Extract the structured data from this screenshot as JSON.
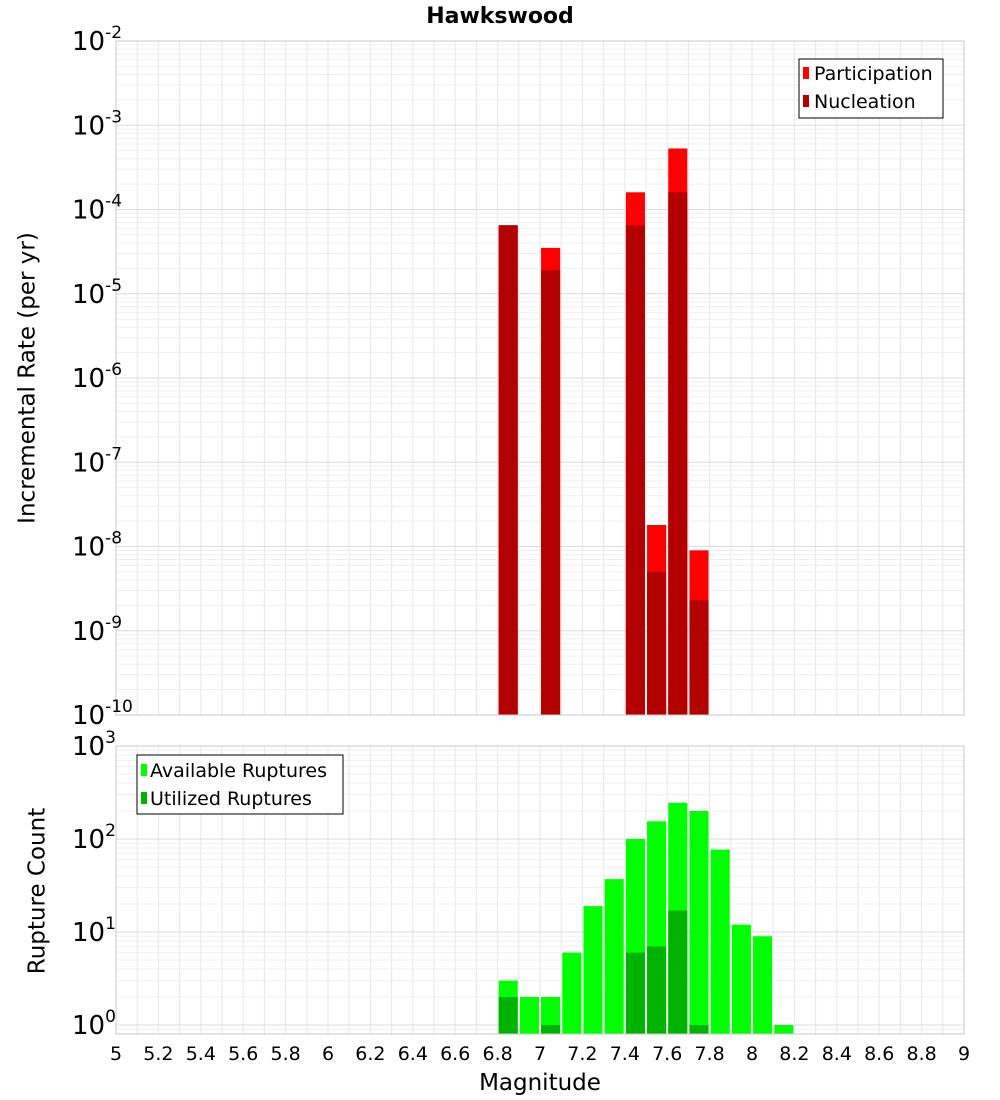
{
  "title": "Hawkswood",
  "colors": {
    "participation": "#ff0000",
    "nucleation": "#b30000",
    "available": "#00ff00",
    "utilized": "#00b300",
    "grid": "#e6e6e6",
    "frame": "#c8c8c8"
  },
  "x_axis": {
    "label": "Magnitude",
    "range": [
      5,
      9
    ],
    "tick_labels": [
      "5",
      "5.2",
      "5.4",
      "5.6",
      "5.8",
      "6",
      "6.2",
      "6.4",
      "6.6",
      "6.8",
      "7",
      "7.2",
      "7.4",
      "7.6",
      "7.8",
      "8",
      "8.2",
      "8.4",
      "8.6",
      "8.8",
      "9"
    ]
  },
  "chart_data": [
    {
      "type": "bar",
      "scale": "log",
      "ylabel": "Incremental Rate (per yr)",
      "ylim": [
        1e-10,
        0.01
      ],
      "y_tick_exponents": [
        -10,
        -9,
        -8,
        -7,
        -6,
        -5,
        -4,
        -3,
        -2
      ],
      "legend": {
        "position": "top-right",
        "entries": [
          "Participation",
          "Nucleation"
        ]
      },
      "grid": true,
      "bar_width": 0.09,
      "series": [
        {
          "name": "Participation",
          "x": [
            6.85,
            7.05,
            7.45,
            7.55,
            7.65,
            7.75
          ],
          "values": [
            6.5e-05,
            3.5e-05,
            0.00016,
            1.8e-08,
            0.00053,
            9e-09
          ]
        },
        {
          "name": "Nucleation",
          "x": [
            6.85,
            7.05,
            7.45,
            7.55,
            7.65,
            7.75
          ],
          "values": [
            6.5e-05,
            1.9e-05,
            6.5e-05,
            5e-09,
            0.00016,
            2.3e-09
          ]
        }
      ]
    },
    {
      "type": "bar",
      "scale": "log",
      "ylabel": "Rupture Count",
      "ylim": [
        0.8,
        1000
      ],
      "y_tick_exponents": [
        0,
        1,
        2,
        3
      ],
      "legend": {
        "position": "top-left",
        "entries": [
          "Available Ruptures",
          "Utilized Ruptures"
        ]
      },
      "grid": true,
      "bar_width": 0.09,
      "series": [
        {
          "name": "Available Ruptures",
          "x": [
            6.85,
            6.95,
            7.05,
            7.15,
            7.25,
            7.35,
            7.45,
            7.55,
            7.65,
            7.75,
            7.85,
            7.95,
            8.05,
            8.15
          ],
          "values": [
            3,
            2,
            2,
            6,
            19,
            37,
            100,
            155,
            245,
            200,
            77,
            12,
            9,
            1
          ]
        },
        {
          "name": "Utilized Ruptures",
          "x": [
            6.85,
            7.05,
            7.45,
            7.55,
            7.65,
            7.75
          ],
          "values": [
            2,
            1,
            6,
            7,
            17,
            1
          ]
        }
      ]
    }
  ]
}
